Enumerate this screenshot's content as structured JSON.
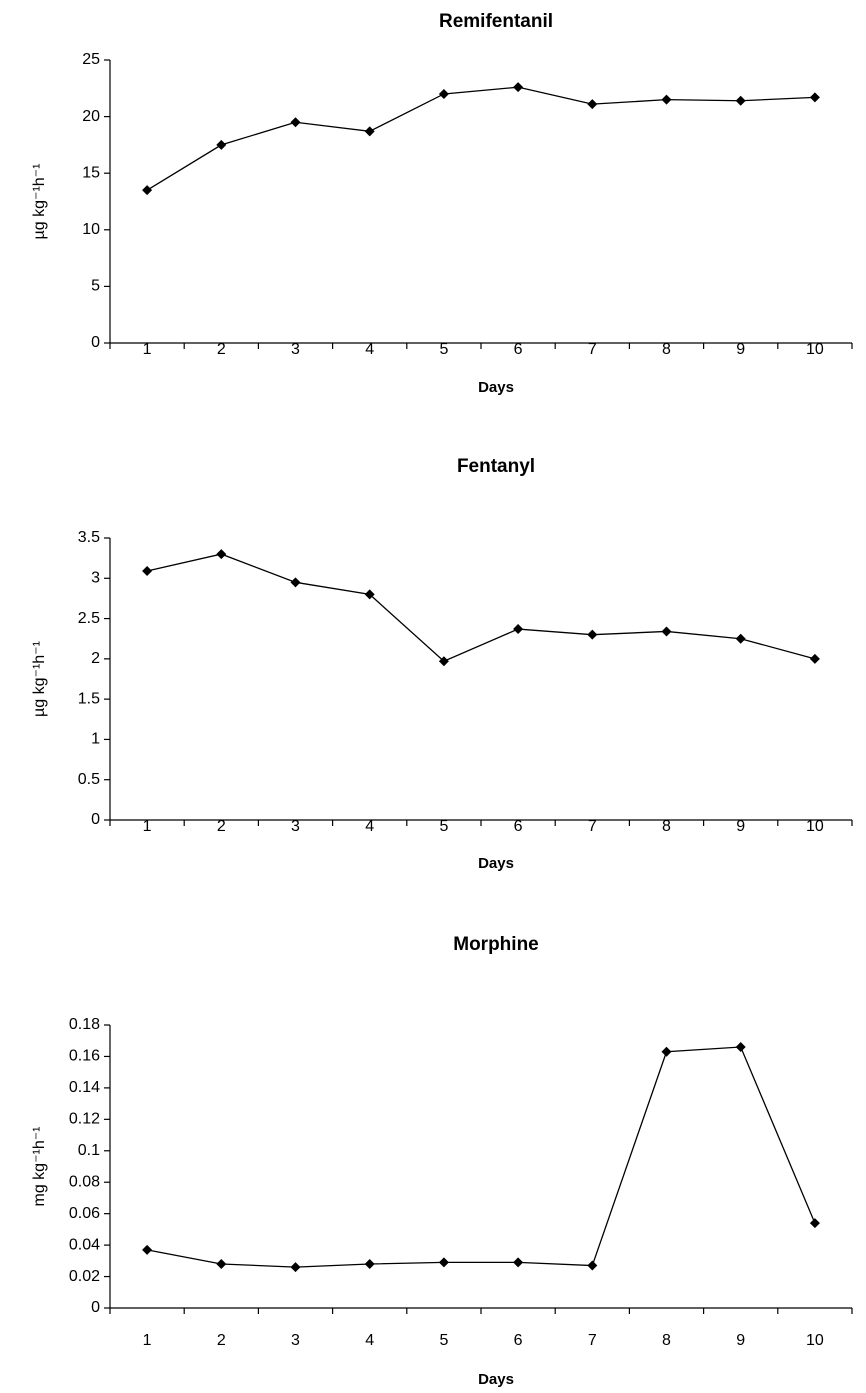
{
  "chart_data": [
    {
      "type": "line",
      "title": "Remifentanil",
      "x_label": "Days",
      "y_label": "µg kg⁻¹h⁻¹",
      "categories": [
        "1",
        "2",
        "3",
        "4",
        "5",
        "6",
        "7",
        "8",
        "9",
        "10"
      ],
      "series": [
        {
          "color": "#000000",
          "values": [
            13.5,
            17.5,
            19.5,
            18.7,
            22,
            22.6,
            21.1,
            21.5,
            21.4,
            21.7
          ]
        }
      ],
      "ylim": [
        0,
        25
      ],
      "yticks": [
        0,
        5,
        10,
        15,
        20,
        25
      ],
      "grid": false
    },
    {
      "type": "line",
      "title": "Fentanyl",
      "x_label": "Days",
      "y_label": "µg kg⁻¹h⁻¹",
      "categories": [
        "1",
        "2",
        "3",
        "4",
        "5",
        "6",
        "7",
        "8",
        "9",
        "10"
      ],
      "series": [
        {
          "color": "#000000",
          "values": [
            3.09,
            3.3,
            2.95,
            2.8,
            1.97,
            2.37,
            2.3,
            2.34,
            2.25,
            2.0
          ]
        }
      ],
      "ylim": [
        0,
        3.5
      ],
      "yticks": [
        0,
        0.5,
        1,
        1.5,
        2,
        2.5,
        3,
        3.5
      ],
      "grid": false
    },
    {
      "type": "line",
      "title": "Morphine",
      "x_label": "Days",
      "y_label": "mg kg⁻¹h⁻¹",
      "categories": [
        "1",
        "2",
        "3",
        "4",
        "5",
        "6",
        "7",
        "8",
        "9",
        "10"
      ],
      "series": [
        {
          "color": "#000000",
          "values": [
            0.037,
            0.028,
            0.026,
            0.028,
            0.029,
            0.029,
            0.027,
            0.163,
            0.166,
            0.054
          ]
        }
      ],
      "ylim": [
        0,
        0.18
      ],
      "yticks": [
        0,
        0.02,
        0.04,
        0.06,
        0.08,
        0.1,
        0.12,
        0.14,
        0.16,
        0.18
      ],
      "grid": false
    }
  ]
}
